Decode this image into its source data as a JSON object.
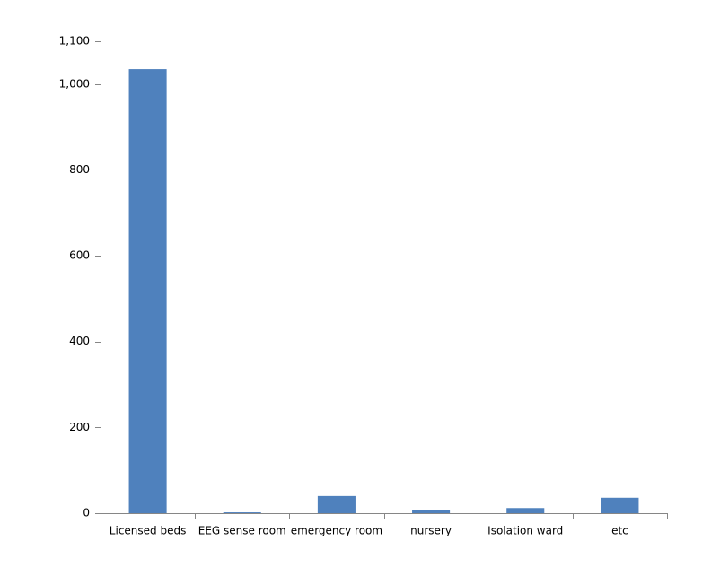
{
  "chart_data": {
    "type": "bar",
    "categories": [
      "Licensed beds",
      "EEG sense room",
      "emergency room",
      "nursery",
      "Isolation ward",
      "etc"
    ],
    "values": [
      1035,
      2,
      40,
      8,
      12,
      36
    ],
    "color": "#4f81bd",
    "ylim": [
      0,
      1100
    ],
    "yticks": [
      0,
      200,
      400,
      600,
      800,
      {
        "value": 1000,
        "label": "1,000"
      },
      {
        "value": 1100,
        "label": "1,100"
      }
    ],
    "grid": false
  }
}
